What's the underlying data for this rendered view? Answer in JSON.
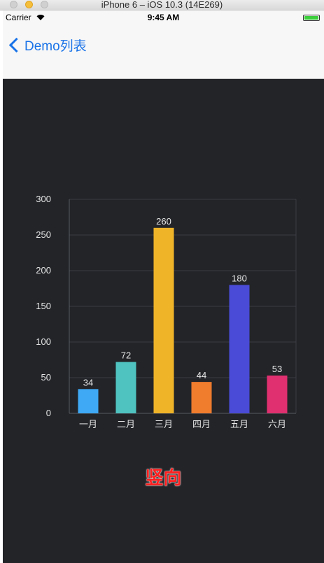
{
  "window": {
    "title": "iPhone 6 – iOS 10.3 (14E269)"
  },
  "status_bar": {
    "carrier": "Carrier",
    "time": "9:45 AM"
  },
  "nav": {
    "back_label": "Demo列表"
  },
  "chart_data": {
    "type": "bar",
    "categories": [
      "一月",
      "二月",
      "三月",
      "四月",
      "五月",
      "六月"
    ],
    "values": [
      34,
      72,
      260,
      44,
      180,
      53
    ],
    "data_labels": [
      "34",
      "72",
      "260",
      "44",
      "180",
      "53"
    ],
    "colors": [
      "#3fa9f5",
      "#4fc3c0",
      "#f0b429",
      "#f07c2e",
      "#4a4bd6",
      "#e0306f"
    ],
    "ylim": [
      0,
      300
    ],
    "yticks": [
      "0",
      "50",
      "100",
      "150",
      "200",
      "250",
      "300"
    ],
    "grid": true
  },
  "orientation_label": "竖向"
}
